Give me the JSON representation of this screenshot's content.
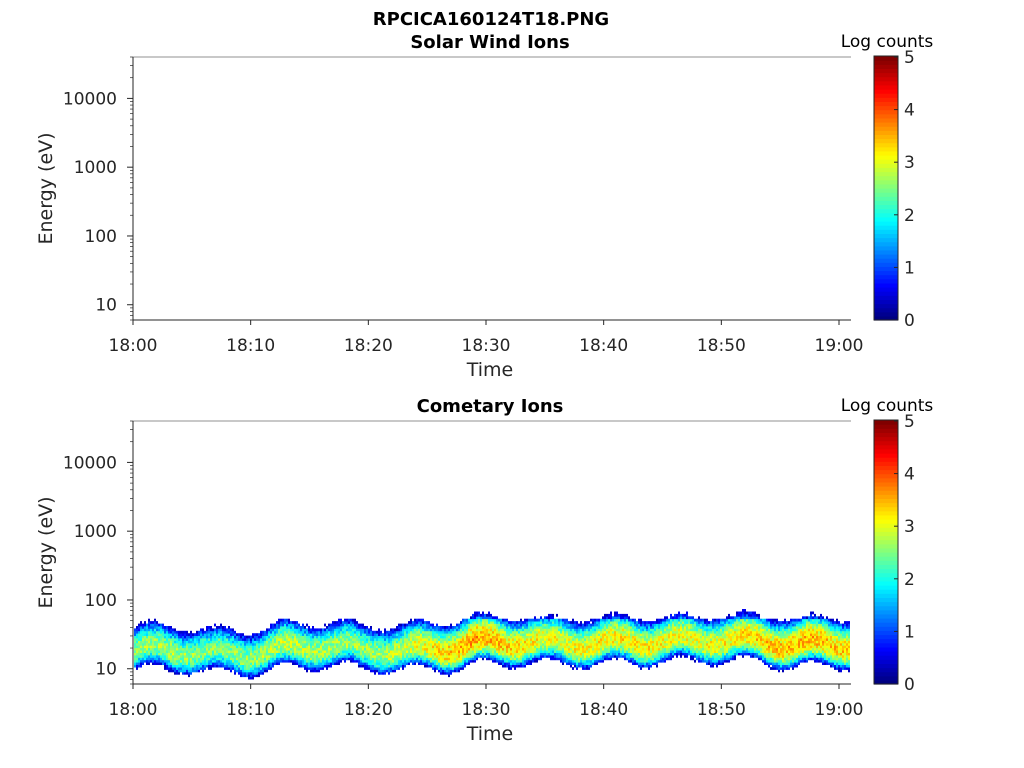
{
  "figure_title": "RPCICA160124T18.PNG",
  "chart_data": [
    {
      "type": "heatmap",
      "title": "Solar Wind Ions",
      "xlabel": "Time",
      "ylabel": "Energy (eV)",
      "x_ticks": [
        "18:00",
        "18:10",
        "18:20",
        "18:30",
        "18:40",
        "18:50",
        "19:00"
      ],
      "x_range": [
        "18:00",
        "19:00"
      ],
      "y_scale": "log",
      "y_ticks": [
        10,
        100,
        1000,
        10000
      ],
      "y_tick_labels": [
        "10",
        "100",
        "1000",
        "10000"
      ],
      "y_range": [
        6,
        40000
      ],
      "colorbar": {
        "label": "Log counts",
        "range": [
          0,
          5
        ],
        "ticks": [
          "0",
          "1",
          "2",
          "3",
          "4",
          "5"
        ],
        "colormap": "jet"
      },
      "data_description": "empty",
      "band": null
    },
    {
      "type": "heatmap",
      "title": "Cometary Ions",
      "xlabel": "Time",
      "ylabel": "Energy (eV)",
      "x_ticks": [
        "18:00",
        "18:10",
        "18:20",
        "18:30",
        "18:40",
        "18:50",
        "19:00"
      ],
      "x_range": [
        "18:00",
        "19:00"
      ],
      "y_scale": "log",
      "y_ticks": [
        10,
        100,
        1000,
        10000
      ],
      "y_tick_labels": [
        "10",
        "100",
        "1000",
        "10000"
      ],
      "y_range": [
        6,
        40000
      ],
      "colorbar": {
        "label": "Log counts",
        "range": [
          0,
          5
        ],
        "ticks": [
          "0",
          "1",
          "2",
          "3",
          "4",
          "5"
        ],
        "colormap": "jet"
      },
      "band": {
        "energy_min_eV": 6,
        "energy_max_eV": 80,
        "peak_energy_eV": [
          18,
          16,
          15,
          18,
          22,
          20,
          16,
          18,
          22,
          25,
          22,
          20,
          24,
          28,
          25,
          22,
          24,
          26,
          25,
          22
        ],
        "peak_log_counts": [
          2.6,
          2.7,
          2.5,
          2.6,
          2.8,
          2.7,
          2.6,
          2.8,
          3.2,
          3.6,
          3.3,
          3.0,
          3.1,
          3.2,
          3.1,
          3.0,
          3.2,
          3.4,
          3.5,
          3.3
        ]
      }
    }
  ]
}
